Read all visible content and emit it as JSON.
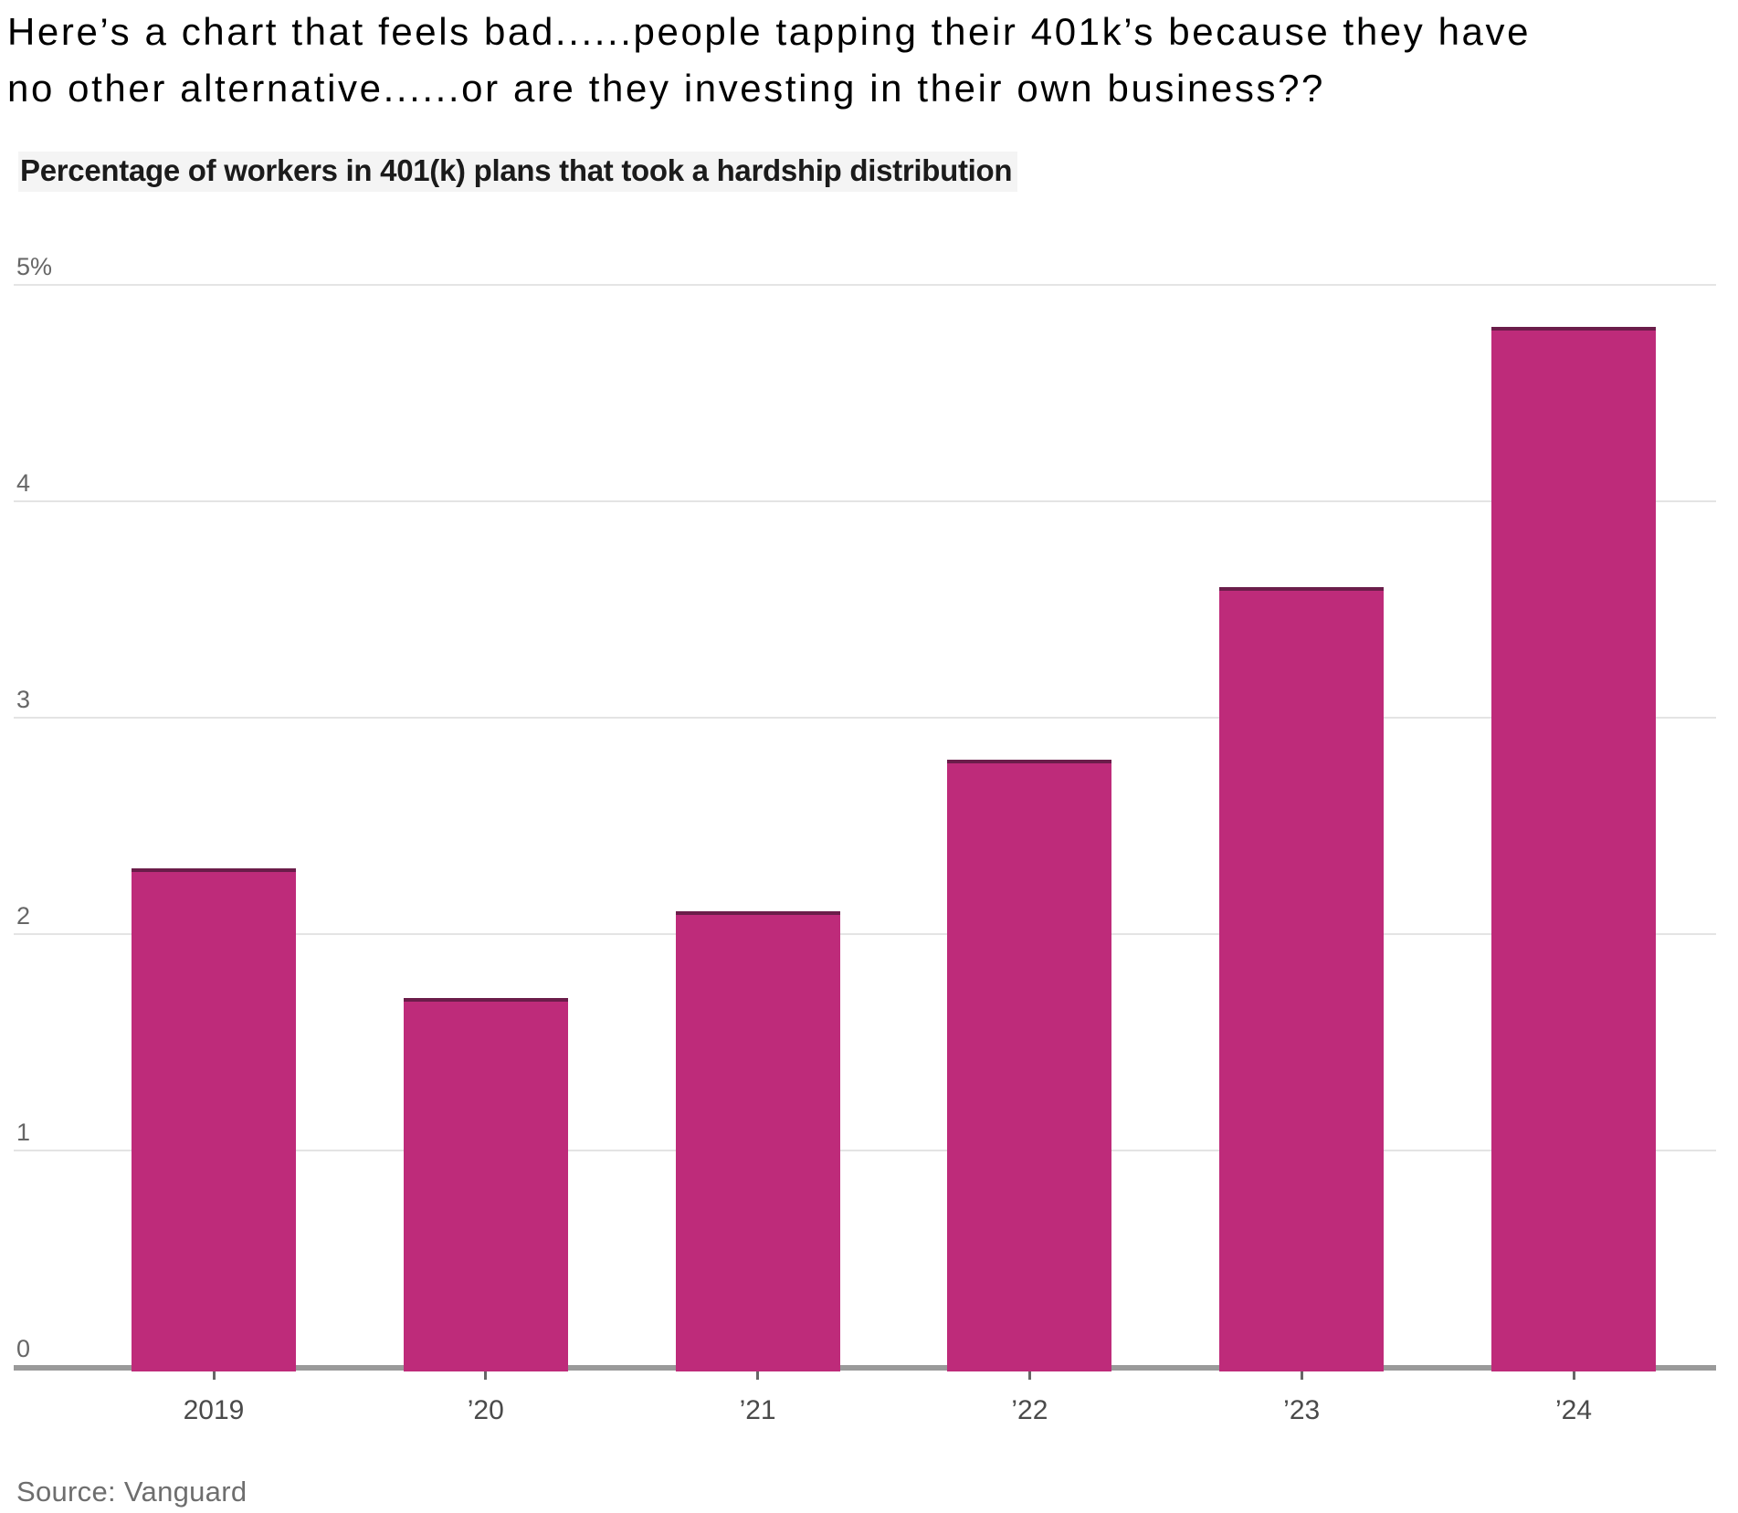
{
  "post": {
    "line1": "Here’s a chart that feels bad......people tapping their 401k’s because they have",
    "line2": "no other alternative......or are they investing in their own business??"
  },
  "chart": {
    "title": "Percentage of workers in 401(k) plans that took a hardship distribution",
    "source": "Source: Vanguard"
  },
  "chart_data": {
    "type": "bar",
    "title": "Percentage of workers in 401(k) plans that took a hardship distribution",
    "categories": [
      "2019",
      "’20",
      "’21",
      "’22",
      "’23",
      "’24"
    ],
    "values": [
      2.3,
      1.7,
      2.1,
      2.8,
      3.6,
      4.8
    ],
    "unit": "percent of workers",
    "xlabel": "",
    "ylabel": "",
    "ylim": [
      0,
      5
    ],
    "yticks": [
      0,
      1,
      2,
      3,
      4,
      5
    ],
    "ytick_labels": [
      "0",
      "1",
      "2",
      "3",
      "4",
      "5%"
    ],
    "bar_color": "#be2b7a",
    "bar_edge_color": "#6b1d4a",
    "grid": true,
    "legend": "none",
    "source": "Source: Vanguard"
  }
}
